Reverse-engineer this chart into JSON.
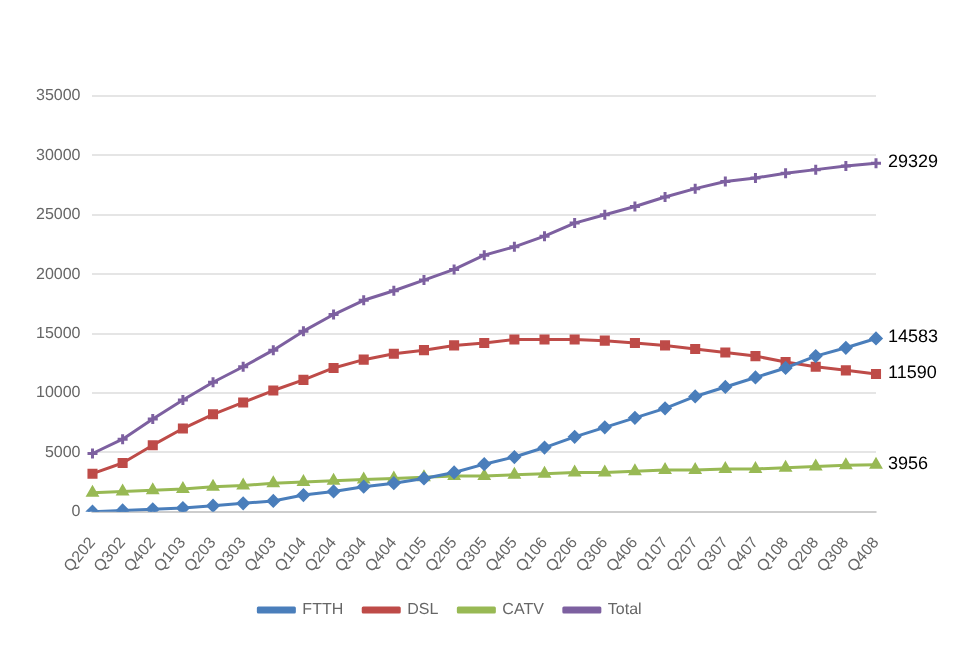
{
  "chart_data": {
    "type": "line",
    "categories": [
      "Q202",
      "Q302",
      "Q402",
      "Q103",
      "Q203",
      "Q303",
      "Q403",
      "Q104",
      "Q204",
      "Q304",
      "Q404",
      "Q105",
      "Q205",
      "Q305",
      "Q405",
      "Q106",
      "Q206",
      "Q306",
      "Q406",
      "Q107",
      "Q207",
      "Q307",
      "Q407",
      "Q108",
      "Q208",
      "Q308",
      "Q408"
    ],
    "series": [
      {
        "name": "FTTH",
        "color": "#4a7ebb",
        "marker": "diamond",
        "values": [
          0,
          100,
          200,
          300,
          500,
          700,
          900,
          1400,
          1700,
          2100,
          2400,
          2800,
          3300,
          4000,
          4600,
          5400,
          6300,
          7100,
          7900,
          8700,
          9700,
          10500,
          11300,
          12100,
          13100,
          13800,
          14583
        ],
        "value_labels": [
          null,
          null,
          null,
          null,
          null,
          null,
          null,
          null,
          null,
          null,
          null,
          null,
          null,
          null,
          null,
          null,
          null,
          null,
          null,
          null,
          null,
          null,
          null,
          null,
          null,
          null,
          "14583"
        ]
      },
      {
        "name": "DSL",
        "color": "#be4b48",
        "marker": "square",
        "values": [
          3200,
          4100,
          5600,
          7000,
          8200,
          9200,
          10200,
          11100,
          12100,
          12800,
          13300,
          13600,
          14000,
          14200,
          14500,
          14500,
          14500,
          14400,
          14200,
          14000,
          13700,
          13400,
          13100,
          12600,
          12200,
          11900,
          11590
        ],
        "value_labels": [
          null,
          null,
          null,
          null,
          null,
          null,
          null,
          null,
          null,
          null,
          null,
          null,
          null,
          null,
          null,
          null,
          null,
          null,
          null,
          null,
          null,
          null,
          null,
          null,
          null,
          null,
          "11590"
        ]
      },
      {
        "name": "CATV",
        "color": "#98b954",
        "marker": "triangle",
        "values": [
          1600,
          1700,
          1800,
          1900,
          2100,
          2200,
          2400,
          2500,
          2600,
          2700,
          2800,
          2900,
          3000,
          3000,
          3100,
          3200,
          3300,
          3300,
          3400,
          3500,
          3500,
          3600,
          3600,
          3700,
          3800,
          3900,
          3956
        ],
        "value_labels": [
          null,
          null,
          null,
          null,
          null,
          null,
          null,
          null,
          null,
          null,
          null,
          null,
          null,
          null,
          null,
          null,
          null,
          null,
          null,
          null,
          null,
          null,
          null,
          null,
          null,
          null,
          "3956"
        ]
      },
      {
        "name": "Total",
        "color": "#7d60a0",
        "marker": "cross",
        "values": [
          4900,
          6100,
          7800,
          9400,
          10900,
          12200,
          13600,
          15200,
          16600,
          17800,
          18600,
          19500,
          20400,
          21600,
          22300,
          23200,
          24300,
          25000,
          25700,
          26500,
          27200,
          27800,
          28100,
          28500,
          28800,
          29100,
          29329
        ],
        "value_labels": [
          null,
          null,
          null,
          null,
          null,
          null,
          null,
          null,
          null,
          null,
          null,
          null,
          null,
          null,
          null,
          null,
          null,
          null,
          null,
          null,
          null,
          null,
          null,
          null,
          null,
          null,
          "29329"
        ]
      }
    ],
    "ylim": [
      0,
      35000
    ],
    "yticks": [
      0,
      5000,
      10000,
      15000,
      20000,
      25000,
      30000,
      35000
    ],
    "grid": "y",
    "legend": "bottom"
  }
}
